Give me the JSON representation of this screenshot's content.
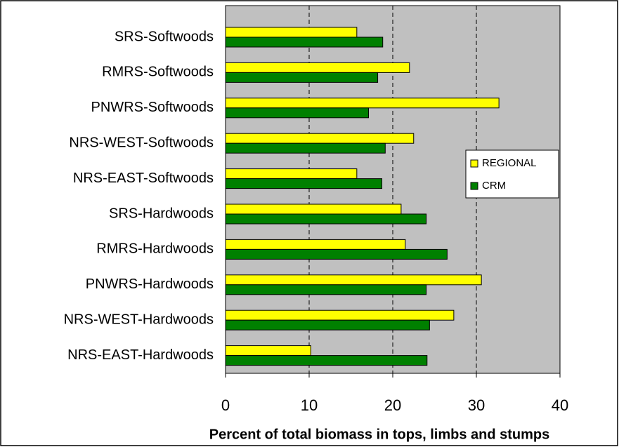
{
  "chart_data": {
    "type": "hbar",
    "x_label": "Percent of total biomass in tops, limbs and stumps",
    "categories": [
      "SRS-Softwoods",
      "RMRS-Softwoods",
      "PNWRS-Softwoods",
      "NRS-WEST-Softwoods",
      "NRS-EAST-Softwoods",
      "SRS-Hardwoods",
      "RMRS-Hardwoods",
      "PNWRS-Hardwoods",
      "NRS-WEST-Hardwoods",
      "NRS-EAST-Hardwoods"
    ],
    "series": [
      {
        "name": "REGIONAL",
        "color": "#ffff00",
        "values": [
          15.7,
          22.0,
          32.7,
          22.5,
          15.7,
          21.0,
          21.5,
          30.6,
          27.3,
          10.2
        ]
      },
      {
        "name": "CRM",
        "color": "#008000",
        "values": [
          18.8,
          18.2,
          17.1,
          19.1,
          18.7,
          24.0,
          26.5,
          24.0,
          24.4,
          24.1
        ]
      }
    ],
    "xlim": [
      0,
      40
    ],
    "xticks": [
      0,
      10,
      20,
      30,
      40
    ],
    "grid": true,
    "legend": "right"
  }
}
